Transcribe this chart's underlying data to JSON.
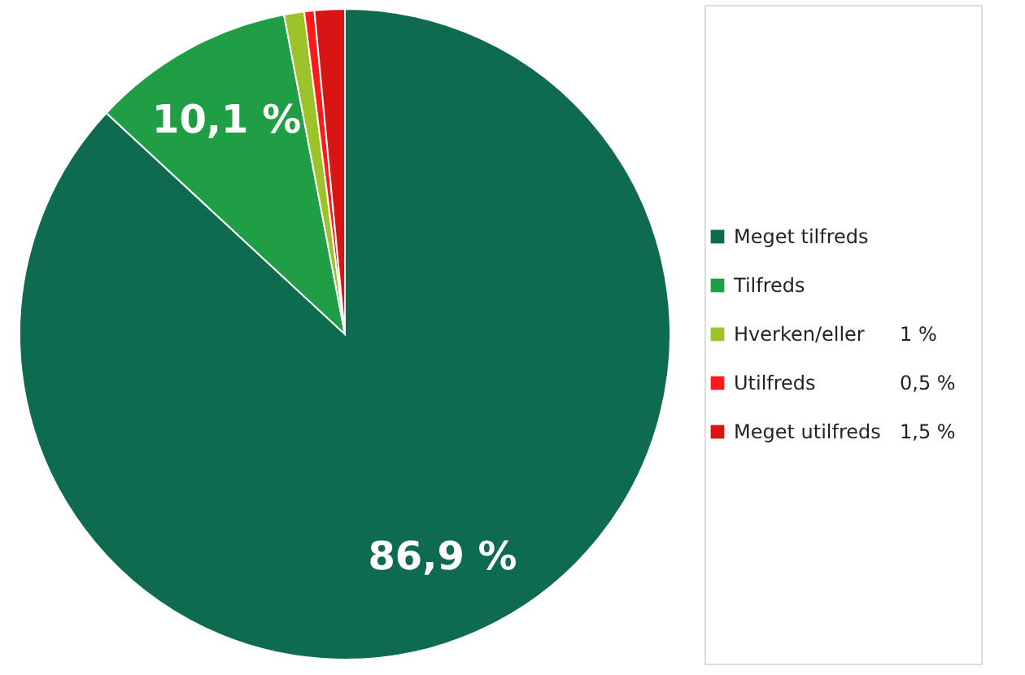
{
  "chart_data": {
    "type": "pie",
    "categories": [
      "Meget tilfreds",
      "Tilfreds",
      "Hverken/eller",
      "Utilfreds",
      "Meget utilfreds"
    ],
    "values": [
      86.9,
      10.1,
      1,
      0.5,
      1.5
    ],
    "colors": [
      "#0f6b4f",
      "#1f9e45",
      "#9cc42a",
      "#ff1a1a",
      "#d81414"
    ],
    "value_labels": [
      "86,9 %",
      "10,1 %",
      "1 %",
      "0,5 %",
      "1,5 %"
    ],
    "legend": "right"
  }
}
